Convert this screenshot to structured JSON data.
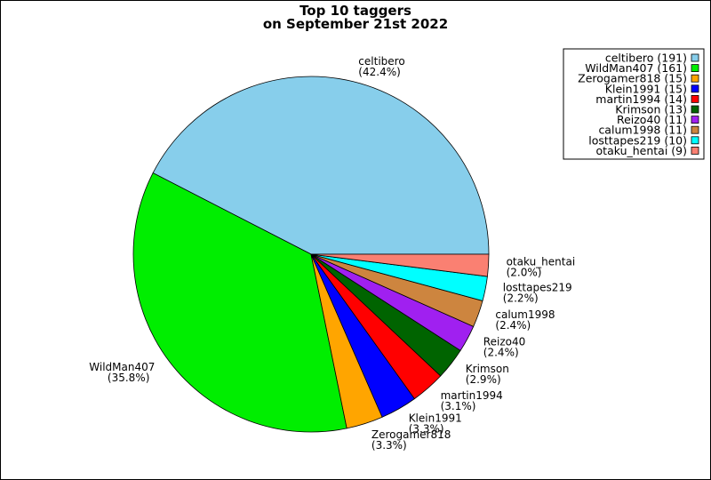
{
  "chart_data": {
    "type": "pie",
    "title_lines": [
      "Top 10 taggers",
      "on September 21st 2022"
    ],
    "slices": [
      {
        "name": "celtibero",
        "value": 191,
        "percent": "42.4%",
        "color": "#87ceeb",
        "legend": "celtibero (191)"
      },
      {
        "name": "WildMan407",
        "value": 161,
        "percent": "35.8%",
        "color": "#00ee00",
        "legend": "WildMan407 (161)"
      },
      {
        "name": "Zerogamer818",
        "value": 15,
        "percent": "3.3%",
        "color": "#ffa500",
        "legend": "Zerogamer818 (15)"
      },
      {
        "name": "Klein1991",
        "value": 15,
        "percent": "3.3%",
        "color": "#0000ff",
        "legend": "Klein1991 (15)"
      },
      {
        "name": "martin1994",
        "value": 14,
        "percent": "3.1%",
        "color": "#ff0000",
        "legend": "martin1994 (14)"
      },
      {
        "name": "Krimson",
        "value": 13,
        "percent": "2.9%",
        "color": "#006400",
        "legend": "Krimson (13)"
      },
      {
        "name": "Reizo40",
        "value": 11,
        "percent": "2.4%",
        "color": "#a020f0",
        "legend": "Reizo40 (11)"
      },
      {
        "name": "calum1998",
        "value": 11,
        "percent": "2.4%",
        "color": "#cd853f",
        "legend": "calum1998 (11)"
      },
      {
        "name": "losttapes219",
        "value": 10,
        "percent": "2.2%",
        "color": "#00ffff",
        "legend": "losttapes219 (10)"
      },
      {
        "name": "otaku_hentai",
        "value": 9,
        "percent": "2.0%",
        "color": "#fa8072",
        "legend": "otaku_hentai (9)"
      }
    ],
    "start_angle_deg": 0,
    "direction": "counterclockwise",
    "legend_position": "top-right"
  }
}
